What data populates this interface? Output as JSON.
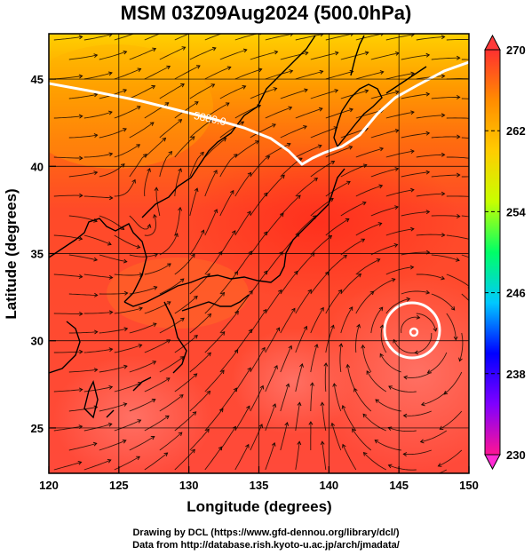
{
  "title": "MSM 03Z09Aug2024 (500.0hPa)",
  "xaxis": {
    "label": "Longitude (degrees)",
    "ticks": [
      120,
      125,
      130,
      135,
      140,
      145,
      150
    ],
    "range": [
      120,
      150
    ]
  },
  "yaxis": {
    "label": "Latitude  (degrees)",
    "ticks": [
      25,
      30,
      35,
      40,
      45
    ],
    "range": [
      22.4,
      47.6
    ]
  },
  "contour": {
    "label": "5880.0",
    "color": "#ffffff"
  },
  "colorbar": {
    "ticks": [
      270,
      262,
      254,
      246,
      238,
      230
    ],
    "range": [
      230,
      270
    ],
    "colors": [
      "#ff1493",
      "#7f00ff",
      "#0000ff",
      "#00c8ff",
      "#00ff66",
      "#c8ff00",
      "#ffcc00",
      "#ff8c00",
      "#ff3030"
    ]
  },
  "credits": {
    "line1": "Drawing by DCL (https://www.gfd-dennou.org/library/dcl/)",
    "line2": "Data from http://database.rish.kyoto-u.ac.jp/arch/jmadata/"
  }
}
